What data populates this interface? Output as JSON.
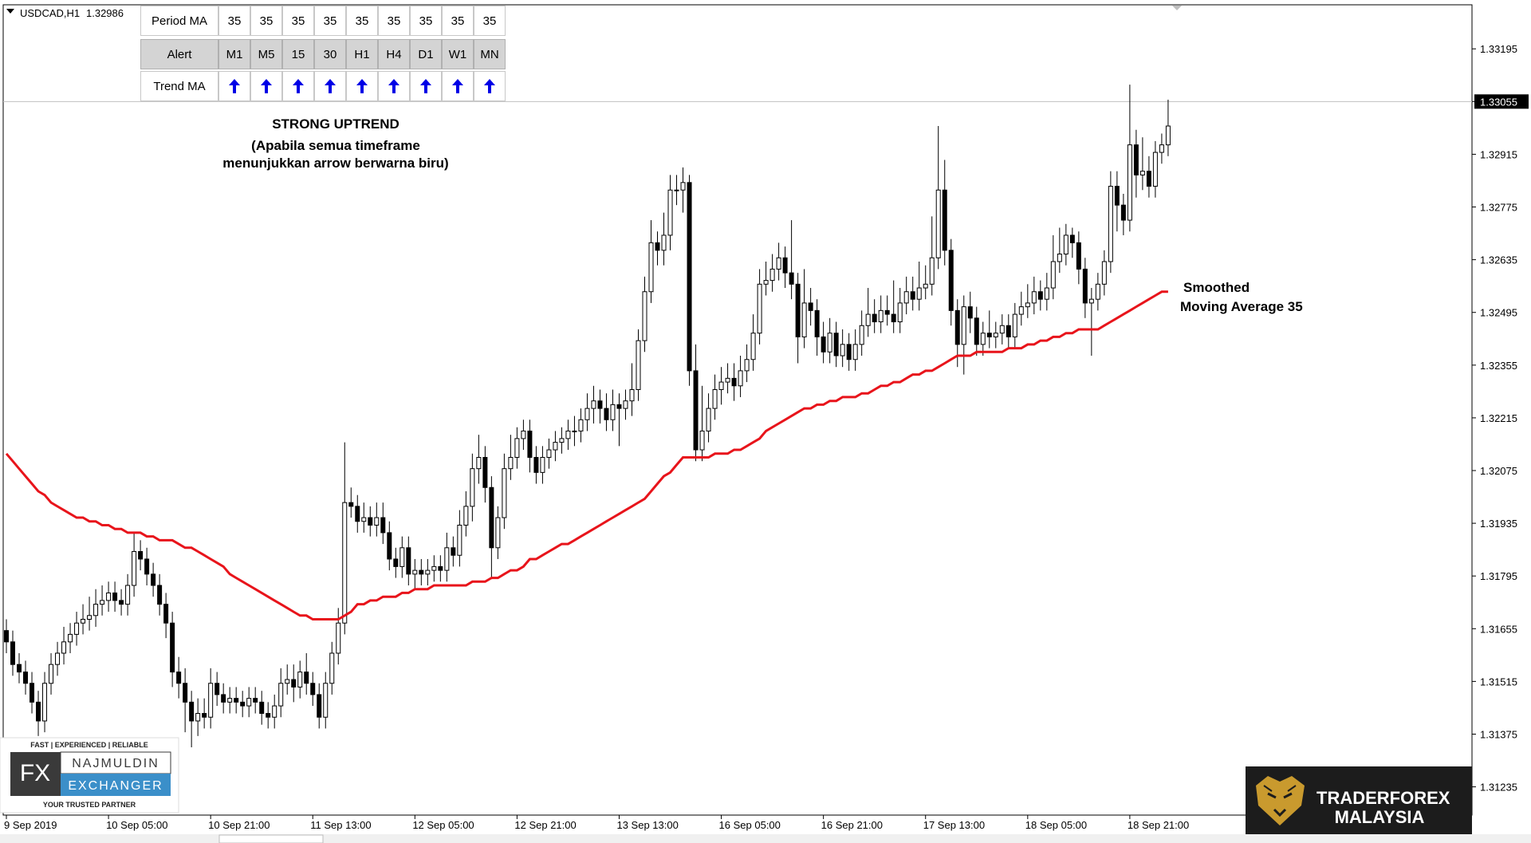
{
  "chart_data": {
    "type": "candlestick",
    "symbol": "USDCAD,H1",
    "bid": 1.32986,
    "last_price": 1.33055,
    "up_color": "#ffffff",
    "down_color": "#000000",
    "ylim": [
      1.3116,
      1.33312
    ],
    "yticks": [
      1.31235,
      1.31375,
      1.31515,
      1.31655,
      1.31795,
      1.31935,
      1.32075,
      1.32215,
      1.32355,
      1.32495,
      1.32635,
      1.32775,
      1.32915,
      1.33055,
      1.33195
    ],
    "annotations": [
      "STRONG UPTREND",
      "(Apabila semua timeframe",
      "menunjukkan arrow berwarna biru)",
      "Smoothed",
      "Moving Average 35"
    ],
    "categories": [
      "9 Sep 2019",
      null,
      null,
      null,
      null,
      null,
      null,
      null,
      null,
      null,
      null,
      null,
      null,
      null,
      null,
      null,
      "10 Sep 05:00",
      null,
      null,
      null,
      null,
      null,
      null,
      null,
      null,
      null,
      null,
      null,
      null,
      null,
      null,
      null,
      "10 Sep 21:00",
      null,
      null,
      null,
      null,
      null,
      null,
      null,
      null,
      null,
      null,
      null,
      null,
      null,
      null,
      null,
      "11 Sep 13:00",
      null,
      null,
      null,
      null,
      null,
      null,
      null,
      null,
      null,
      null,
      null,
      null,
      null,
      null,
      null,
      "12 Sep 05:00",
      null,
      null,
      null,
      null,
      null,
      null,
      null,
      null,
      null,
      null,
      null,
      null,
      null,
      null,
      null,
      "12 Sep 21:00",
      null,
      null,
      null,
      null,
      null,
      null,
      null,
      null,
      null,
      null,
      null,
      null,
      null,
      null,
      null,
      "13 Sep 13:00",
      null,
      null,
      null,
      null,
      null,
      null,
      null,
      null,
      null,
      null,
      null,
      null,
      null,
      null,
      null,
      "16 Sep 05:00",
      null,
      null,
      null,
      null,
      null,
      null,
      null,
      null,
      null,
      null,
      null,
      null,
      null,
      null,
      null,
      "16 Sep 21:00",
      null,
      null,
      null,
      null,
      null,
      null,
      null,
      null,
      null,
      null,
      null,
      null,
      null,
      null,
      null,
      "17 Sep 13:00",
      null,
      null,
      null,
      null,
      null,
      null,
      null,
      null,
      null,
      null,
      null,
      null,
      null,
      null,
      null,
      "18 Sep 05:00",
      null,
      null,
      null,
      null,
      null,
      null,
      null,
      null,
      null,
      null,
      null,
      null,
      null,
      null,
      null,
      "18 Sep 21:00",
      null,
      null,
      null,
      null,
      null,
      null
    ],
    "open": [
      1.3165,
      1.3162,
      1.3156,
      1.3154,
      1.3151,
      1.3146,
      1.3141,
      1.3151,
      1.3156,
      1.3159,
      1.3162,
      1.3164,
      1.3167,
      1.3168,
      1.3169,
      1.3172,
      1.3173,
      1.3175,
      1.3173,
      1.3172,
      1.3177,
      1.3186,
      1.3184,
      1.318,
      1.3177,
      1.3172,
      1.3167,
      1.3154,
      1.3151,
      1.3146,
      1.3141,
      1.3143,
      1.3142,
      1.3151,
      1.3148,
      1.3146,
      1.3147,
      1.3146,
      1.3145,
      1.3147,
      1.3146,
      1.3143,
      1.3142,
      1.3145,
      1.3151,
      1.3152,
      1.315,
      1.3154,
      1.3151,
      1.3148,
      1.3142,
      1.3151,
      1.3159,
      1.3167,
      1.3199,
      1.3198,
      1.3194,
      1.3195,
      1.3193,
      1.3195,
      1.3191,
      1.3184,
      1.3182,
      1.3187,
      1.318,
      1.3181,
      1.318,
      1.3181,
      1.3182,
      1.3181,
      1.3187,
      1.3185,
      1.3193,
      1.3198,
      1.3208,
      1.3211,
      1.3203,
      1.3187,
      1.3195,
      1.3208,
      1.3211,
      1.3216,
      1.3218,
      1.3211,
      1.3207,
      1.3211,
      1.3213,
      1.3215,
      1.3216,
      1.3218,
      1.3218,
      1.3221,
      1.3224,
      1.3226,
      1.3224,
      1.3221,
      1.3225,
      1.3224,
      1.3226,
      1.3229,
      1.3242,
      1.3255,
      1.3268,
      1.3266,
      1.327,
      1.3282,
      1.3282,
      1.3284,
      1.3234,
      1.3213,
      1.3218,
      1.3224,
      1.3229,
      1.3231,
      1.3232,
      1.323,
      1.3234,
      1.3237,
      1.3244,
      1.3257,
      1.3258,
      1.3261,
      1.3264,
      1.326,
      1.3257,
      1.3243,
      1.3252,
      1.325,
      1.3243,
      1.3239,
      1.3244,
      1.3238,
      1.3241,
      1.3237,
      1.3241,
      1.3246,
      1.3249,
      1.3247,
      1.325,
      1.3249,
      1.3247,
      1.3252,
      1.3255,
      1.3253,
      1.3256,
      1.3257,
      1.3264,
      1.3282,
      1.3266,
      1.325,
      1.3241,
      1.3251,
      1.3248,
      1.3241,
      1.3244,
      1.3243,
      1.3244,
      1.3246,
      1.3243,
      1.3249,
      1.3251,
      1.3252,
      1.3255,
      1.3253,
      1.3256,
      1.3263,
      1.3265,
      1.327,
      1.3268,
      1.3261,
      1.3252,
      1.3253,
      1.3257,
      1.3263,
      1.3283,
      1.3278,
      1.3274,
      1.3294,
      1.3286,
      1.3287,
      1.3283,
      1.3292,
      1.3294
    ],
    "high": [
      1.3168,
      1.3165,
      1.3159,
      1.3157,
      1.3154,
      1.3149,
      1.3154,
      1.3159,
      1.3162,
      1.3166,
      1.3167,
      1.317,
      1.3172,
      1.3174,
      1.3176,
      1.3177,
      1.3178,
      1.3178,
      1.3176,
      1.318,
      1.3191,
      1.3189,
      1.3187,
      1.3183,
      1.318,
      1.3175,
      1.317,
      1.3158,
      1.3155,
      1.3149,
      1.3147,
      1.3147,
      1.3155,
      1.3154,
      1.3151,
      1.315,
      1.315,
      1.3149,
      1.315,
      1.315,
      1.3149,
      1.3146,
      1.3148,
      1.3155,
      1.3156,
      1.3156,
      1.3157,
      1.3159,
      1.3154,
      1.3151,
      1.3154,
      1.3162,
      1.3171,
      1.3215,
      1.3203,
      1.3201,
      1.3199,
      1.3198,
      1.3199,
      1.3199,
      1.3194,
      1.3187,
      1.319,
      1.319,
      1.3184,
      1.3184,
      1.3184,
      1.3185,
      1.3185,
      1.3191,
      1.319,
      1.3197,
      1.3202,
      1.3212,
      1.3217,
      1.3214,
      1.3206,
      1.3198,
      1.3212,
      1.3217,
      1.3219,
      1.3221,
      1.3221,
      1.3214,
      1.3214,
      1.3216,
      1.3218,
      1.3219,
      1.3221,
      1.3222,
      1.3224,
      1.3228,
      1.323,
      1.3229,
      1.3228,
      1.3229,
      1.3228,
      1.3229,
      1.3236,
      1.3245,
      1.3259,
      1.3274,
      1.3271,
      1.3276,
      1.3286,
      1.3286,
      1.3288,
      1.3286,
      1.3241,
      1.323,
      1.3228,
      1.3233,
      1.3235,
      1.3236,
      1.3236,
      1.3238,
      1.3241,
      1.3249,
      1.3261,
      1.3263,
      1.3265,
      1.3268,
      1.3267,
      1.3274,
      1.326,
      1.3261,
      1.3256,
      1.3253,
      1.3247,
      1.3248,
      1.3247,
      1.3245,
      1.3244,
      1.3245,
      1.325,
      1.3256,
      1.3253,
      1.3254,
      1.3254,
      1.3258,
      1.3256,
      1.3259,
      1.3259,
      1.3263,
      1.3262,
      1.3275,
      1.3299,
      1.329,
      1.3269,
      1.3253,
      1.3254,
      1.3255,
      1.3251,
      1.3247,
      1.325,
      1.3247,
      1.3249,
      1.3249,
      1.3252,
      1.3255,
      1.3257,
      1.3259,
      1.3258,
      1.326,
      1.327,
      1.3272,
      1.3273,
      1.3272,
      1.3271,
      1.3264,
      1.3256,
      1.326,
      1.3266,
      1.3287,
      1.3287,
      1.3281,
      1.331,
      1.3298,
      1.3296,
      1.3291,
      1.3295,
      1.3297,
      1.3306
    ],
    "low": [
      1.3159,
      1.3153,
      1.3151,
      1.3148,
      1.3143,
      1.3137,
      1.3138,
      1.3148,
      1.3153,
      1.3156,
      1.3159,
      1.3161,
      1.3164,
      1.3165,
      1.3166,
      1.3169,
      1.317,
      1.317,
      1.3169,
      1.3169,
      1.3174,
      1.3181,
      1.3177,
      1.3174,
      1.3169,
      1.3163,
      1.315,
      1.3147,
      1.3138,
      1.3134,
      1.3137,
      1.3139,
      1.3139,
      1.3145,
      1.3143,
      1.3143,
      1.3143,
      1.3142,
      1.3142,
      1.3143,
      1.314,
      1.3139,
      1.3139,
      1.3142,
      1.3148,
      1.3146,
      1.3147,
      1.3148,
      1.3145,
      1.3139,
      1.3139,
      1.3148,
      1.3156,
      1.3164,
      1.3195,
      1.3191,
      1.3191,
      1.319,
      1.319,
      1.3188,
      1.3181,
      1.3179,
      1.3179,
      1.3177,
      1.3176,
      1.3177,
      1.3177,
      1.3178,
      1.3178,
      1.3178,
      1.3182,
      1.3182,
      1.319,
      1.3194,
      1.3204,
      1.3199,
      1.3179,
      1.3184,
      1.3192,
      1.3205,
      1.3208,
      1.3213,
      1.3207,
      1.3204,
      1.3204,
      1.3208,
      1.321,
      1.3212,
      1.3213,
      1.3214,
      1.3215,
      1.3218,
      1.322,
      1.322,
      1.3218,
      1.3218,
      1.3214,
      1.3221,
      1.3222,
      1.3226,
      1.3239,
      1.3252,
      1.3262,
      1.3262,
      1.3266,
      1.3278,
      1.3276,
      1.323,
      1.321,
      1.321,
      1.3215,
      1.3221,
      1.3225,
      1.3228,
      1.3226,
      1.3227,
      1.3231,
      1.3234,
      1.3241,
      1.3254,
      1.3255,
      1.3258,
      1.3256,
      1.3253,
      1.3236,
      1.324,
      1.3246,
      1.3238,
      1.3236,
      1.3236,
      1.3235,
      1.3235,
      1.3234,
      1.3234,
      1.3238,
      1.3243,
      1.3244,
      1.3244,
      1.3246,
      1.3244,
      1.3244,
      1.3249,
      1.325,
      1.325,
      1.3253,
      1.3254,
      1.3261,
      1.3262,
      1.3246,
      1.3235,
      1.3233,
      1.3244,
      1.3238,
      1.3238,
      1.324,
      1.324,
      1.3241,
      1.324,
      1.324,
      1.3246,
      1.3248,
      1.3249,
      1.325,
      1.325,
      1.3253,
      1.326,
      1.3262,
      1.3264,
      1.3257,
      1.3248,
      1.3238,
      1.325,
      1.3254,
      1.326,
      1.3271,
      1.327,
      1.3271,
      1.328,
      1.3282,
      1.328,
      1.328,
      1.3289,
      1.3291
    ],
    "close": [
      1.3162,
      1.3156,
      1.3154,
      1.3151,
      1.3146,
      1.3141,
      1.3151,
      1.3156,
      1.3159,
      1.3162,
      1.3164,
      1.3167,
      1.3168,
      1.3169,
      1.3172,
      1.3173,
      1.3175,
      1.3173,
      1.3172,
      1.3177,
      1.3186,
      1.3184,
      1.318,
      1.3177,
      1.3172,
      1.3167,
      1.3154,
      1.3151,
      1.3146,
      1.3141,
      1.3143,
      1.3142,
      1.3151,
      1.3148,
      1.3146,
      1.3147,
      1.3146,
      1.3145,
      1.3147,
      1.3146,
      1.3143,
      1.3142,
      1.3145,
      1.3151,
      1.3152,
      1.315,
      1.3154,
      1.3151,
      1.3148,
      1.3142,
      1.3151,
      1.3159,
      1.3167,
      1.3199,
      1.3198,
      1.3194,
      1.3195,
      1.3193,
      1.3195,
      1.3191,
      1.3184,
      1.3182,
      1.3187,
      1.318,
      1.3181,
      1.318,
      1.3181,
      1.3182,
      1.3181,
      1.3187,
      1.3185,
      1.3193,
      1.3198,
      1.3208,
      1.3211,
      1.3203,
      1.3187,
      1.3195,
      1.3208,
      1.3211,
      1.3216,
      1.3218,
      1.3211,
      1.3207,
      1.3211,
      1.3213,
      1.3215,
      1.3216,
      1.3218,
      1.3218,
      1.3221,
      1.3224,
      1.3226,
      1.3224,
      1.3221,
      1.3225,
      1.3224,
      1.3226,
      1.3229,
      1.3242,
      1.3255,
      1.3268,
      1.3266,
      1.327,
      1.3282,
      1.3282,
      1.3284,
      1.3234,
      1.3213,
      1.3218,
      1.3224,
      1.3229,
      1.3231,
      1.3232,
      1.323,
      1.3234,
      1.3237,
      1.3244,
      1.3257,
      1.3258,
      1.3261,
      1.3264,
      1.326,
      1.3257,
      1.3243,
      1.3252,
      1.325,
      1.3243,
      1.3239,
      1.3244,
      1.3238,
      1.3241,
      1.3237,
      1.3241,
      1.3246,
      1.3249,
      1.3247,
      1.325,
      1.3249,
      1.3247,
      1.3252,
      1.3255,
      1.3253,
      1.3256,
      1.3257,
      1.3264,
      1.3282,
      1.3266,
      1.325,
      1.3241,
      1.3251,
      1.3248,
      1.3241,
      1.3244,
      1.3243,
      1.3244,
      1.3246,
      1.3243,
      1.3249,
      1.3251,
      1.3252,
      1.3255,
      1.3253,
      1.3256,
      1.3263,
      1.3265,
      1.327,
      1.3268,
      1.3261,
      1.3252,
      1.3253,
      1.3257,
      1.3263,
      1.3283,
      1.3278,
      1.3274,
      1.3294,
      1.3286,
      1.3287,
      1.3283,
      1.3292,
      1.3294,
      1.3299
    ],
    "overlays": [
      {
        "color": "#e8141b",
        "values": [
          1.3212,
          1.321,
          1.3208,
          1.3206,
          1.3204,
          1.3202,
          1.3201,
          1.3199,
          1.3198,
          1.3197,
          1.3196,
          1.3195,
          1.3195,
          1.3194,
          1.3194,
          1.3193,
          1.3193,
          1.3192,
          1.3192,
          1.3191,
          1.3191,
          1.3191,
          1.319,
          1.319,
          1.3189,
          1.3189,
          1.3189,
          1.3188,
          1.3187,
          1.3187,
          1.3186,
          1.3185,
          1.3184,
          1.3183,
          1.3182,
          1.318,
          1.3179,
          1.3178,
          1.3177,
          1.3176,
          1.3175,
          1.3174,
          1.3173,
          1.3172,
          1.3171,
          1.317,
          1.3169,
          1.3169,
          1.3168,
          1.3168,
          1.3168,
          1.3168,
          1.3168,
          1.3169,
          1.317,
          1.3172,
          1.3172,
          1.3173,
          1.3173,
          1.3174,
          1.3174,
          1.3174,
          1.3175,
          1.3175,
          1.3176,
          1.3176,
          1.3176,
          1.3177,
          1.3177,
          1.3177,
          1.3177,
          1.3177,
          1.3177,
          1.3178,
          1.3178,
          1.3178,
          1.3179,
          1.3179,
          1.318,
          1.3181,
          1.3181,
          1.3182,
          1.3184,
          1.3184,
          1.3185,
          1.3186,
          1.3187,
          1.3188,
          1.3188,
          1.3189,
          1.319,
          1.3191,
          1.3192,
          1.3193,
          1.3194,
          1.3195,
          1.3196,
          1.3197,
          1.3198,
          1.3199,
          1.32,
          1.3202,
          1.3204,
          1.3206,
          1.3207,
          1.3209,
          1.3211,
          1.3211,
          1.3211,
          1.3211,
          1.3211,
          1.3212,
          1.3212,
          1.3212,
          1.3213,
          1.3213,
          1.3214,
          1.3215,
          1.3216,
          1.3218,
          1.3219,
          1.322,
          1.3221,
          1.3222,
          1.3223,
          1.3224,
          1.3224,
          1.3225,
          1.3225,
          1.3226,
          1.3226,
          1.3227,
          1.3227,
          1.3227,
          1.3228,
          1.3228,
          1.3229,
          1.323,
          1.323,
          1.3231,
          1.3231,
          1.3232,
          1.3233,
          1.3233,
          1.3234,
          1.3234,
          1.3235,
          1.3236,
          1.3237,
          1.3238,
          1.3238,
          1.3238,
          1.3239,
          1.3239,
          1.3239,
          1.3239,
          1.3239,
          1.324,
          1.324,
          1.324,
          1.3241,
          1.3241,
          1.3242,
          1.3242,
          1.3243,
          1.3243,
          1.3244,
          1.3244,
          1.3245,
          1.3245,
          1.3245,
          1.3245,
          1.3246,
          1.3247,
          1.3248,
          1.3249,
          1.325,
          1.3251,
          1.3252,
          1.3253,
          1.3254,
          1.3255,
          1.3255
        ]
      }
    ]
  },
  "indicator_panel": {
    "rows": [
      {
        "label": "Period MA",
        "cells": [
          35,
          35,
          35,
          35,
          35,
          35,
          35,
          35,
          35
        ]
      },
      {
        "label": "Alert",
        "cells": [
          "M1",
          "M5",
          "15",
          "30",
          "H1",
          "H4",
          "D1",
          "W1",
          "MN"
        ]
      },
      {
        "label": "Trend MA"
      }
    ]
  },
  "logos": {
    "left": {
      "tagline": "FAST | EXPERIENCED | RELIABLE",
      "mark": "FX",
      "name": "NAJMULDIN",
      "name2": "EXCHANGER",
      "motto": "YOUR TRUSTED PARTNER"
    },
    "right": {
      "line1": "TRADERFOREX",
      "line2": "MALAYSIA"
    }
  }
}
